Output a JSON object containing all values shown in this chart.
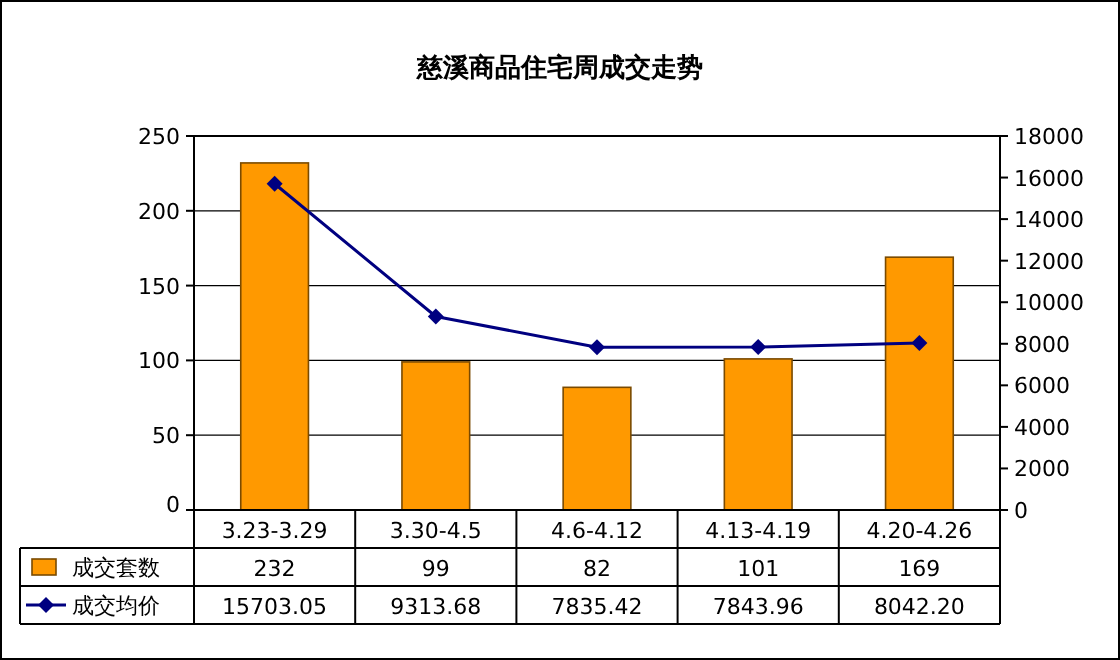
{
  "chart_data": {
    "type": "bar",
    "title": "慈溪商品住宅周成交走势",
    "categories": [
      "3.23-3.29",
      "3.30-4.5",
      "4.6-4.12",
      "4.13-4.19",
      "4.20-4.26"
    ],
    "series": [
      {
        "name": "成交套数",
        "color": "#ff9900",
        "values": [
          232,
          99,
          82,
          101,
          169
        ],
        "value_labels": [
          "232",
          "99",
          "82",
          "101",
          "169"
        ]
      },
      {
        "name": "成交均价",
        "type": "line",
        "axis": "y2",
        "color": "#000080",
        "marker": "diamond",
        "values": [
          15703.05,
          9313.68,
          7835.42,
          7843.96,
          8042.2
        ],
        "value_labels": [
          "15703.05",
          "9313.68",
          "7835.42",
          "7843.96",
          "8042.20"
        ]
      }
    ],
    "ylim": [
      0,
      250
    ],
    "yticks": [
      0,
      50,
      100,
      150,
      200,
      250
    ],
    "y2lim": [
      0,
      18000
    ],
    "y2ticks": [
      0,
      2000,
      4000,
      6000,
      8000,
      10000,
      12000,
      14000,
      16000,
      18000
    ],
    "grid": "y",
    "legend": "bottom"
  }
}
